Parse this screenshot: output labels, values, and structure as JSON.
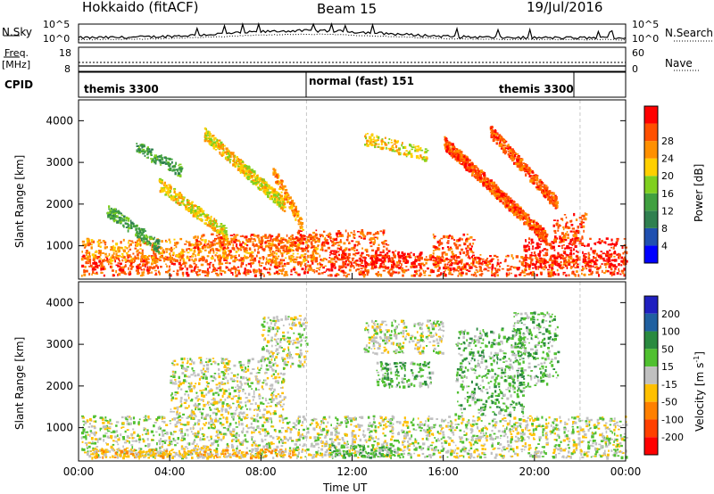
{
  "header": {
    "station": "Hokkaido (fitACF)",
    "beam": "Beam 15",
    "date": "19/Jul/2016"
  },
  "sky_panel": {
    "left_label": "N.Sky",
    "right_label": "N.Search",
    "left_ticks": [
      "10^5",
      "10^0"
    ],
    "right_ticks": [
      "10^5",
      "10^0"
    ]
  },
  "freq_panel": {
    "left_label": "Freq.",
    "left_unit": "[MHz]",
    "left_ticks": [
      "18",
      "8"
    ],
    "right_ticks": [
      "60",
      "0"
    ],
    "right_label": "Nave"
  },
  "cpid_panel": {
    "label": "CPID",
    "segments": [
      {
        "name": "themis 3300",
        "start_hour": 0,
        "end_hour": 10
      },
      {
        "name": "normal (fast) 151",
        "start_hour": 10,
        "end_hour": 22
      },
      {
        "name": "themis 3300",
        "start_hour": 22,
        "end_hour": 24
      }
    ]
  },
  "chart_data": [
    {
      "type": "heatmap",
      "name": "power",
      "ylabel": "Slant Range [km]",
      "ylim": [
        200,
        4500
      ],
      "yticks": [
        "1000",
        "2000",
        "3000",
        "4000"
      ],
      "xlim": [
        0,
        24
      ],
      "colorbar": {
        "label": "Power [dB]",
        "ticks": [
          "4",
          "8",
          "12",
          "16",
          "20",
          "24",
          "28"
        ],
        "colors": [
          "#0000ff",
          "#2050b0",
          "#308050",
          "#40a040",
          "#80d020",
          "#ffd000",
          "#ff9000",
          "#ff5000",
          "#ff0000"
        ]
      },
      "bands": [
        {
          "t0": 0.1,
          "t1": 24,
          "r0": 300,
          "r1": 800,
          "level": 7
        },
        {
          "t0": 0.1,
          "t1": 10.5,
          "r0": 650,
          "r1": 1200,
          "level": 6
        },
        {
          "t0": 5,
          "t1": 9.5,
          "r0": 900,
          "r1": 1300,
          "level": 7
        },
        {
          "t0": 9.5,
          "t1": 13.5,
          "r0": 900,
          "r1": 1400,
          "level": 7
        },
        {
          "t0": 11,
          "t1": 15,
          "r0": 500,
          "r1": 900,
          "level": 8
        },
        {
          "t0": 15.5,
          "t1": 17.3,
          "r0": 500,
          "r1": 1300,
          "level": 7
        },
        {
          "t0": 19.5,
          "t1": 24,
          "r0": 500,
          "r1": 1200,
          "level": 8
        },
        {
          "t0": 20.8,
          "t1": 22.2,
          "r0": 1100,
          "r1": 1800,
          "level": 7
        }
      ],
      "arcs": [
        {
          "t0": 1.2,
          "t1": 3.5,
          "r0": 1000,
          "r1": 1900,
          "level": 3
        },
        {
          "t0": 3.5,
          "t1": 6.5,
          "r0": 1300,
          "r1": 2500,
          "level": 5
        },
        {
          "t0": 5.5,
          "t1": 9,
          "r0": 2000,
          "r1": 3700,
          "level": 5
        },
        {
          "t0": 8.5,
          "t1": 9.8,
          "r0": 1500,
          "r1": 2800,
          "level": 6
        },
        {
          "t0": 16,
          "t1": 20.5,
          "r0": 1200,
          "r1": 3500,
          "level": 7
        },
        {
          "t0": 18,
          "t1": 21,
          "r0": 2000,
          "r1": 3800,
          "level": 7
        },
        {
          "t0": 12.5,
          "t1": 15.3,
          "r0": 3200,
          "r1": 3600,
          "level": 5
        },
        {
          "t0": 2.5,
          "t1": 4.5,
          "r0": 2800,
          "r1": 3400,
          "level": 3
        }
      ],
      "vertical_lines_hour": [
        10,
        22
      ]
    },
    {
      "type": "heatmap",
      "name": "velocity",
      "ylabel": "Slant Range [km]",
      "ylim": [
        200,
        4500
      ],
      "yticks": [
        "1000",
        "2000",
        "3000",
        "4000"
      ],
      "xlim": [
        0,
        24
      ],
      "xticks": [
        "00:00",
        "04:00",
        "08:00",
        "12:00",
        "16:00",
        "20:00",
        "00:00"
      ],
      "xlabel": "Time UT",
      "colorbar": {
        "label": "Velocity [m s",
        "label_superscript": "-1",
        "label_suffix": "]",
        "ticks": [
          "200",
          "100",
          "50",
          "15",
          "-15",
          "-50",
          "-100",
          "-200"
        ],
        "colors": [
          "#2020c0",
          "#2060a0",
          "#2a8a40",
          "#50c030",
          "#c0c0c0",
          "#ffc000",
          "#ff8000",
          "#ff4000",
          "#ff0000"
        ]
      },
      "bands": [
        {
          "t0": 0.1,
          "t1": 24,
          "r0": 300,
          "r1": 1300,
          "level": 4
        },
        {
          "t0": 0.5,
          "t1": 9.5,
          "r0": 300,
          "r1": 500,
          "level": 5
        },
        {
          "t0": 4,
          "t1": 9,
          "r0": 1300,
          "r1": 2700,
          "level": 4
        },
        {
          "t0": 8,
          "t1": 10,
          "r0": 2500,
          "r1": 3700,
          "level": 4
        },
        {
          "t0": 12.5,
          "t1": 16,
          "r0": 2800,
          "r1": 3600,
          "level": 4
        },
        {
          "t0": 16.5,
          "t1": 19.5,
          "r0": 1300,
          "r1": 3400,
          "level": 3
        },
        {
          "t0": 19,
          "t1": 21,
          "r0": 2000,
          "r1": 3800,
          "level": 3
        },
        {
          "t0": 13,
          "t1": 15.5,
          "r0": 2000,
          "r1": 2600,
          "level": 3
        },
        {
          "t0": 11,
          "t1": 14,
          "r0": 300,
          "r1": 600,
          "level": 3
        }
      ],
      "vertical_lines_hour": [
        10,
        22
      ]
    }
  ]
}
